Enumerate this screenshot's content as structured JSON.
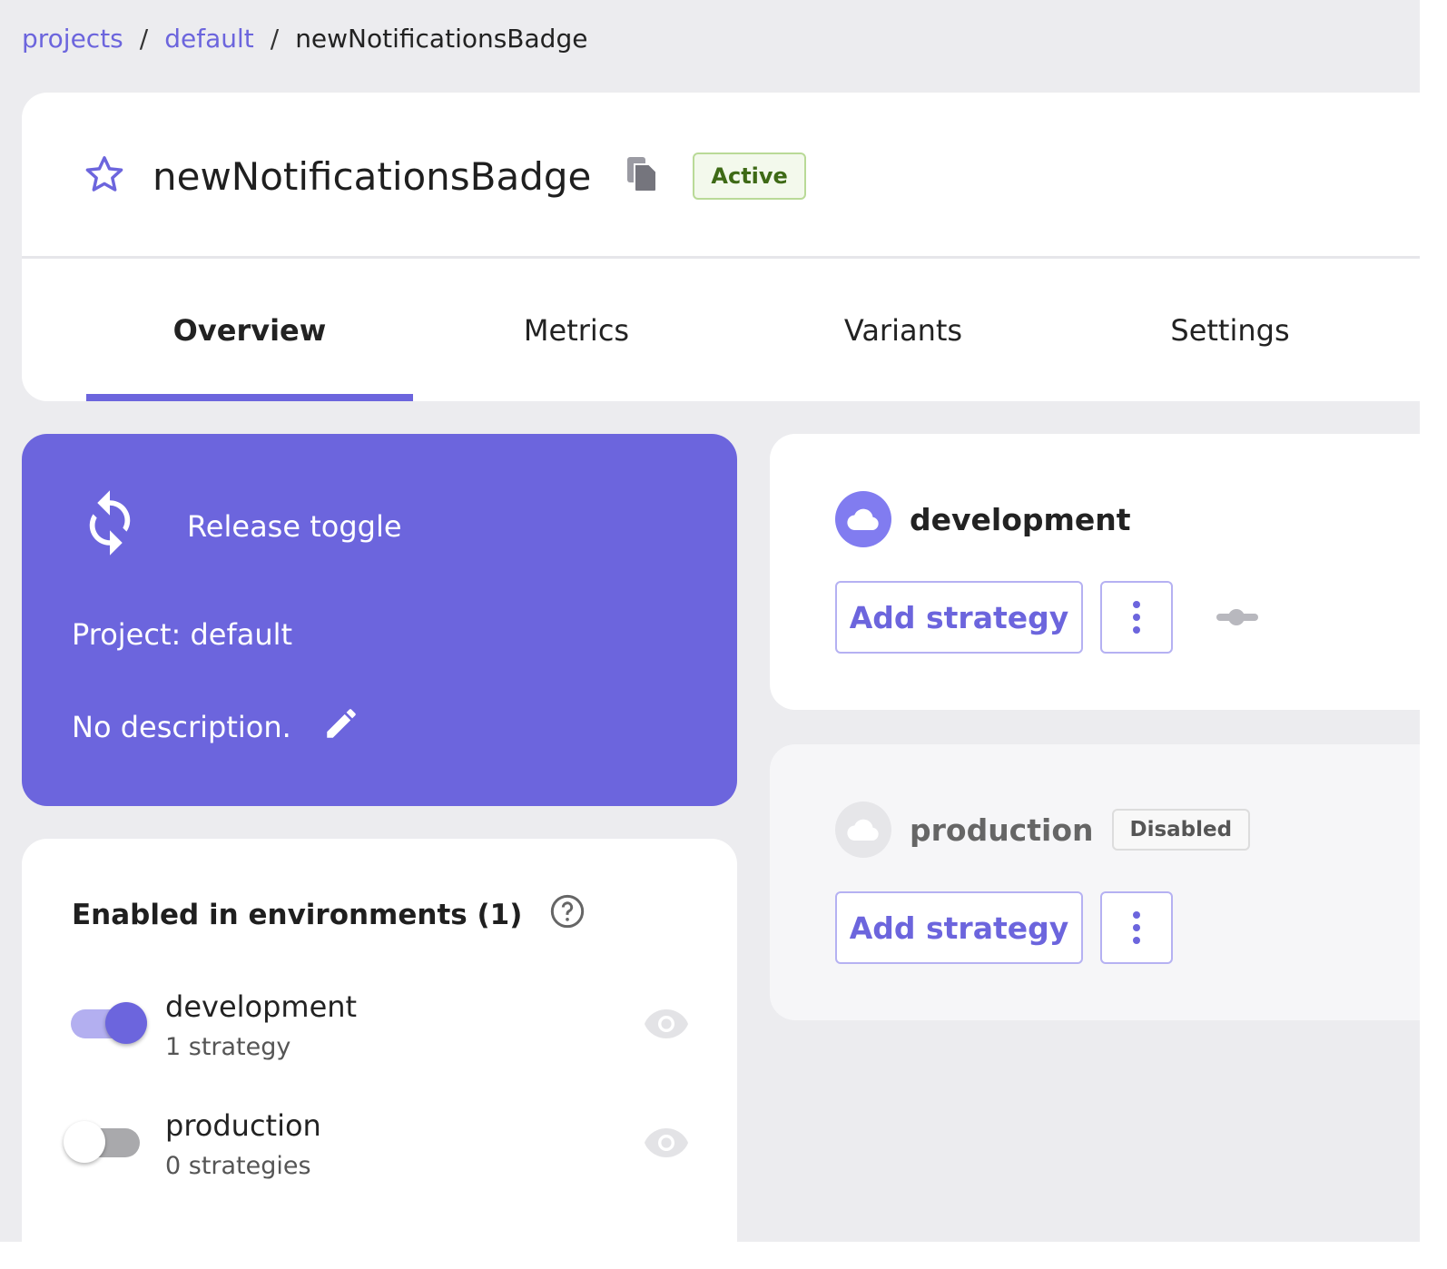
{
  "breadcrumb": {
    "items": [
      "projects",
      "default"
    ],
    "current": "newNotificationsBadge",
    "separator": "/"
  },
  "header": {
    "title": "newNotificationsBadge",
    "status": "Active",
    "icons": [
      "star-icon",
      "copy-icon"
    ]
  },
  "tabs": [
    {
      "label": "Overview",
      "active": true
    },
    {
      "label": "Metrics"
    },
    {
      "label": "Variants"
    },
    {
      "label": "Settings"
    }
  ],
  "info": {
    "type": "Release toggle",
    "project": "Project: default",
    "description": "No description."
  },
  "enabled": {
    "title": "Enabled in environments (1)",
    "rows": [
      {
        "name": "development",
        "count": "1 strategy",
        "enabled": true
      },
      {
        "name": "production",
        "count": "0 strategies",
        "enabled": false
      }
    ]
  },
  "environments": [
    {
      "name": "development",
      "add_label": "Add strategy",
      "disabled": false
    },
    {
      "name": "production",
      "add_label": "Add strategy",
      "disabled": true,
      "badge": "Disabled"
    }
  ],
  "colors": {
    "accent": "#6c65dd",
    "active_text": "#3e6a16"
  }
}
